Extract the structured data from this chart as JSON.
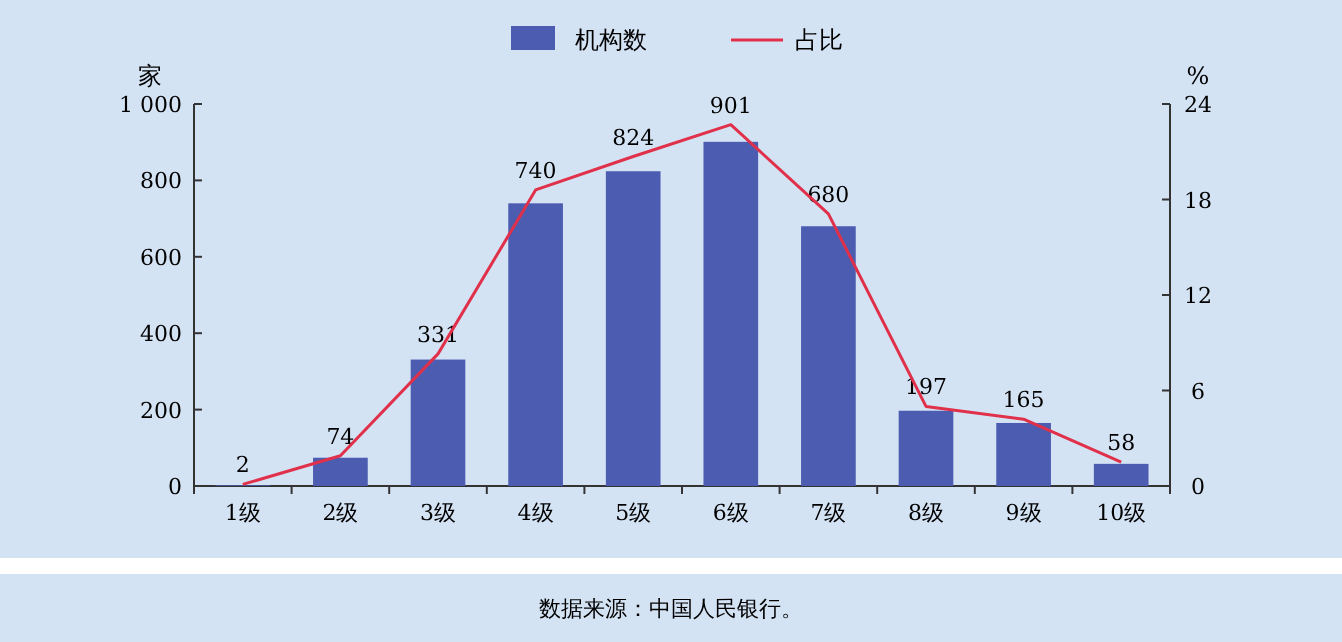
{
  "chart_data": {
    "type": "bar",
    "categories": [
      "1级",
      "2级",
      "3级",
      "4级",
      "5级",
      "6级",
      "7级",
      "8级",
      "9级",
      "10级"
    ],
    "series": [
      {
        "name": "机构数",
        "color": "#4c5cb0",
        "values": [
          2,
          74,
          331,
          740,
          824,
          901,
          680,
          197,
          165,
          58
        ],
        "value_labels": [
          "2",
          "74",
          "331",
          "740",
          "824",
          "901",
          "680",
          "197",
          "165",
          "58"
        ]
      },
      {
        "name": "占比",
        "type": "line",
        "axis": "y2",
        "color": "#e0304a",
        "values": [
          0.1,
          1.9,
          8.3,
          18.6,
          20.7,
          22.7,
          17.1,
          5.0,
          4.2,
          1.5
        ]
      }
    ],
    "ylabel": "家",
    "y2label": "%",
    "ylim": [
      0,
      1000
    ],
    "yticks": [
      0,
      200,
      400,
      600,
      800,
      {
        "value": 1000,
        "label": "1 000"
      }
    ],
    "y2lim": [
      0,
      24
    ],
    "y2ticks": [
      0,
      6,
      12,
      18,
      24
    ],
    "legend": "top",
    "marker": "none",
    "grid": false,
    "annotations": [
      "数据来源：中国人民银行。"
    ]
  }
}
